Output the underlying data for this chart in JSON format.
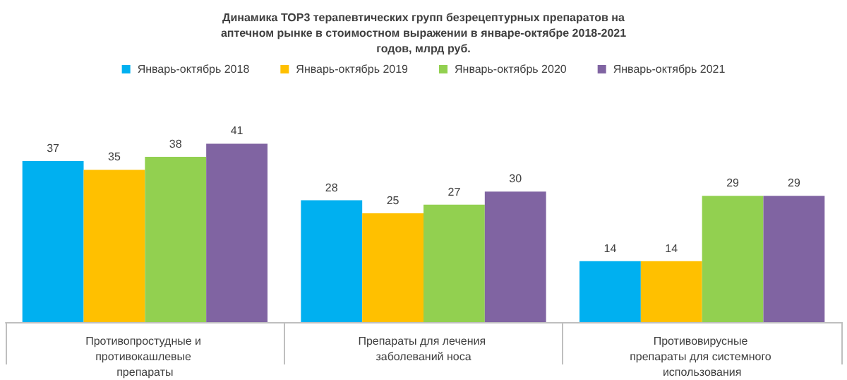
{
  "chart_data": {
    "type": "bar",
    "title": "Динамика ТОР3 терапевтических групп безрецептурных препаратов на аптечном рынке в стоимостном выражении в январе-октябре 2018-2021 годов, млрд руб.",
    "categories": [
      "Противопростудные и противокашлевые препараты",
      "Препараты для лечения заболеваний носа",
      "Противовирусные препараты для системного использования"
    ],
    "series": [
      {
        "name": "Январь-октябрь 2018",
        "color": "#00b0f0",
        "values": [
          37,
          28,
          14
        ]
      },
      {
        "name": "Январь-октябрь 2019",
        "color": "#ffc000",
        "values": [
          35,
          25,
          14
        ]
      },
      {
        "name": "Январь-октябрь 2020",
        "color": "#92d050",
        "values": [
          38,
          27,
          29
        ]
      },
      {
        "name": "Январь-октябрь 2021",
        "color": "#8064a2",
        "values": [
          41,
          30,
          29
        ]
      }
    ],
    "data_labels": true,
    "legend": "top"
  }
}
